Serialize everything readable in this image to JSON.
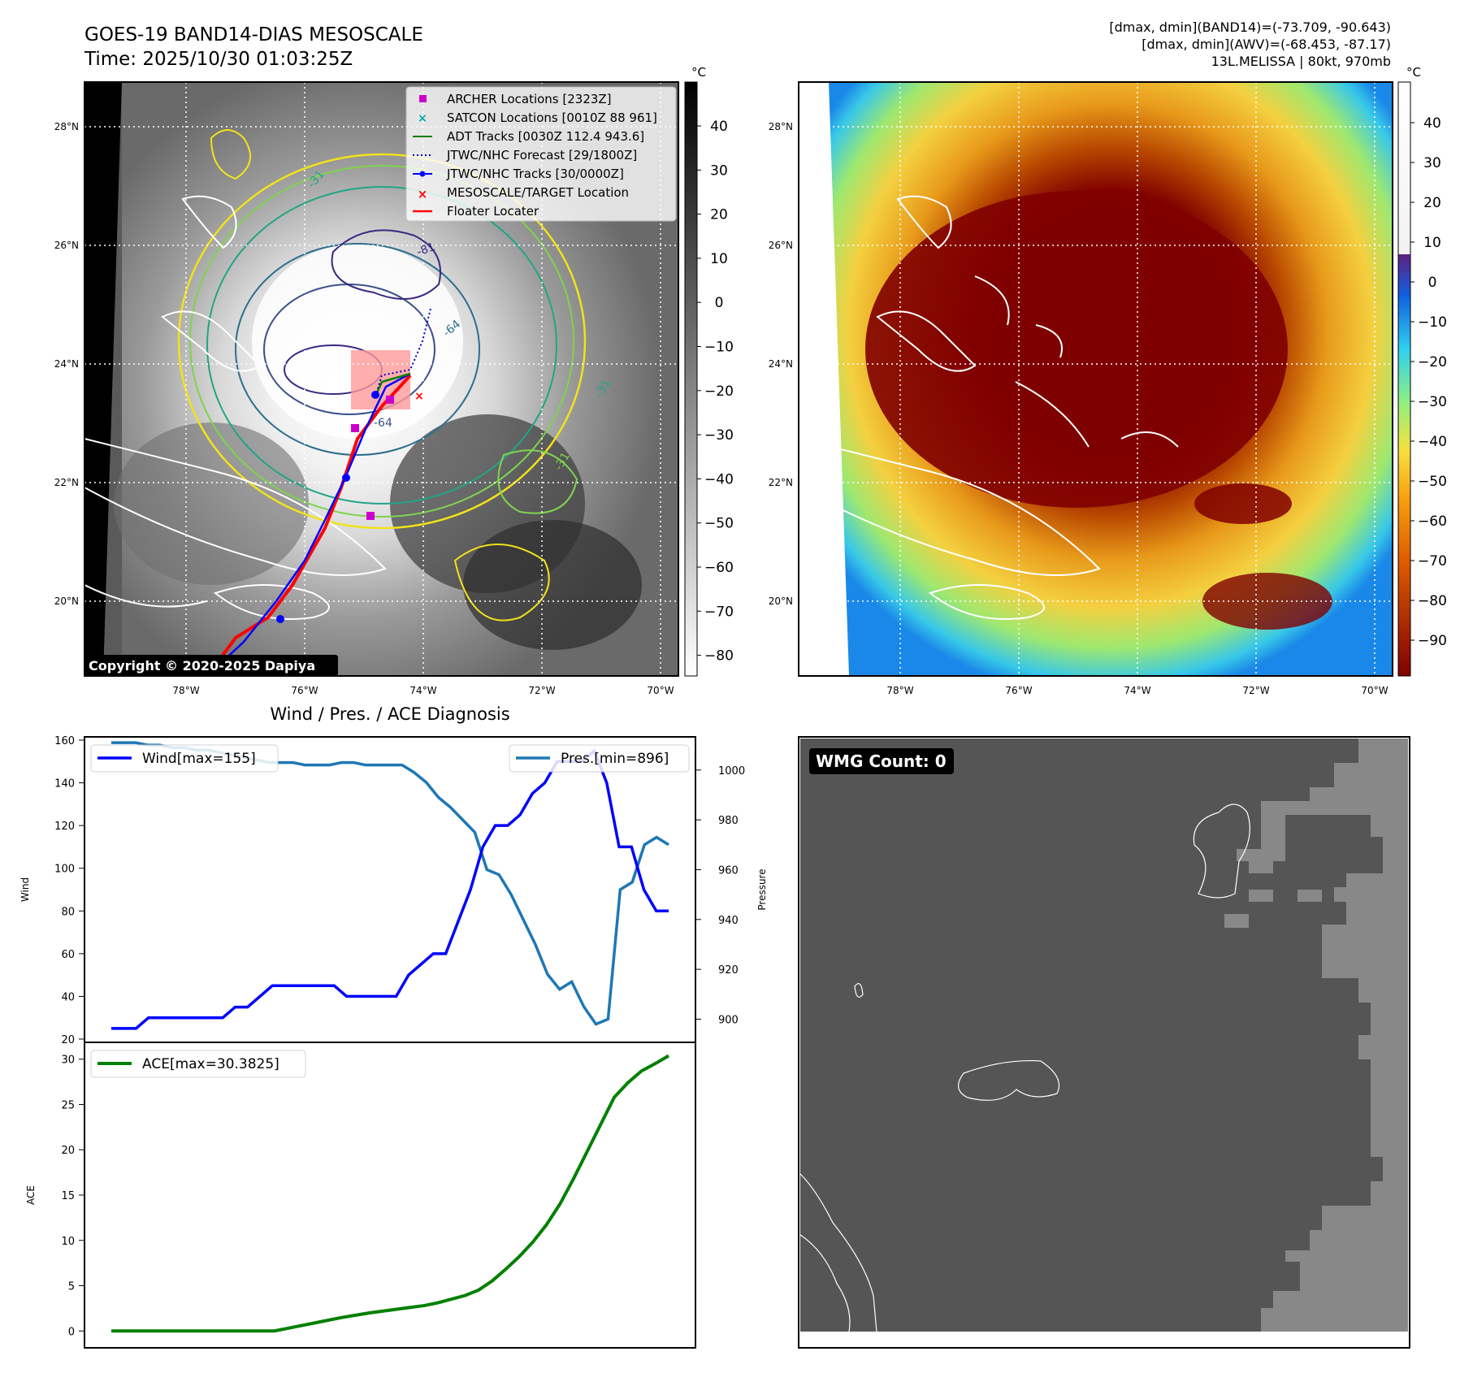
{
  "header": {
    "title_line1": "GOES-19 BAND14-DIAS MESOSCALE",
    "title_line2": "Time: 2025/10/30 01:03:25Z",
    "info_line1": "[dmax, dmin](BAND14)=(-73.709, -90.643)",
    "info_line2": "[dmax, dmin](AWV)=(-68.453, -87.17)",
    "info_line3": "13L.MELISSA | 80kt, 970mb"
  },
  "copyright": "Copyright © 2020-2025 Dapiya",
  "map": {
    "lat_labels": [
      "28°N",
      "26°N",
      "24°N",
      "22°N",
      "20°N"
    ],
    "lon_labels": [
      "78°W",
      "76°W",
      "74°W",
      "72°W",
      "70°W"
    ],
    "legend": [
      {
        "label": "ARCHER Locations [2323Z]",
        "color": "#cc00cc",
        "marker": "square"
      },
      {
        "label": "SATCON Locations [0010Z 88 961]",
        "color": "#00aaaa",
        "marker": "x"
      },
      {
        "label": "ADT Tracks [0030Z 112.4 943.6]",
        "color": "#008000",
        "marker": "line"
      },
      {
        "label": "JTWC/NHC Forecast [29/1800Z]",
        "color": "#0000cc",
        "marker": "dotted"
      },
      {
        "label": "JTWC/NHC Tracks [30/0000Z]",
        "color": "#0000ff",
        "marker": "line-dot"
      },
      {
        "label": "MESOSCALE/TARGET Location",
        "color": "#ff0000",
        "marker": "x"
      },
      {
        "label": "Floater Locater",
        "color": "#ff0000",
        "marker": "line"
      }
    ],
    "contour_labels": [
      "-31",
      "-81",
      "-64",
      "-31",
      "-31",
      "-64"
    ]
  },
  "colorbar_ir": {
    "unit": "°C",
    "ticks": [
      "40",
      "30",
      "20",
      "10",
      "0",
      "−10",
      "−20",
      "−30",
      "−40",
      "−50",
      "−60",
      "−70",
      "−80"
    ]
  },
  "colorbar_awv": {
    "unit": "°C",
    "ticks": [
      "40",
      "30",
      "20",
      "10",
      "0",
      "−10",
      "−20",
      "−30",
      "−40",
      "−50",
      "−60",
      "−70",
      "−80",
      "−90"
    ]
  },
  "diagnosis": {
    "title": "Wind / Pres. / ACE Diagnosis",
    "wind_ylabel": "Wind",
    "pres_ylabel": "Pressure",
    "ace_ylabel": "ACE",
    "wind_legend": "Wind[max=155]",
    "pres_legend": "Pres.[min=896]",
    "ace_legend": "ACE[max=30.3825]",
    "wind_ticks": [
      "160",
      "140",
      "120",
      "100",
      "80",
      "60",
      "40",
      "20"
    ],
    "pres_ticks": [
      "1000",
      "980",
      "960",
      "940",
      "920",
      "900"
    ],
    "ace_ticks": [
      "30",
      "25",
      "20",
      "15",
      "10",
      "5",
      "0"
    ]
  },
  "wmg": {
    "label": "WMG Count: 0"
  },
  "colors": {
    "wind": "#0000ff",
    "pressure": "#1f77b4",
    "ace": "#008000",
    "wmg_bg": "#555555",
    "wmg_cells": "#888888"
  },
  "chart_data": [
    {
      "type": "line",
      "title": "Wind / Pres. / ACE Diagnosis",
      "xlabel": "",
      "ylabel": "Wind",
      "ylim": [
        20,
        160
      ],
      "series": [
        {
          "name": "Wind[max=155]",
          "values": [
            25,
            25,
            25,
            30,
            30,
            30,
            30,
            30,
            30,
            30,
            35,
            35,
            40,
            45,
            45,
            45,
            45,
            45,
            45,
            40,
            40,
            40,
            40,
            40,
            50,
            55,
            60,
            60,
            75,
            90,
            110,
            120,
            120,
            125,
            135,
            140,
            150,
            150,
            150,
            155,
            140,
            110,
            110,
            90,
            80,
            80
          ]
        }
      ]
    },
    {
      "type": "line",
      "title": "",
      "xlabel": "",
      "ylabel": "Pressure",
      "ylim": [
        892,
        1012
      ],
      "series": [
        {
          "name": "Pres.[min=896]",
          "values": [
            1011,
            1011,
            1011,
            1010,
            1010,
            1009,
            1009,
            1008,
            1008,
            1007,
            1006,
            1005,
            1004,
            1003,
            1003,
            1003,
            1002,
            1002,
            1002,
            1003,
            1003,
            1002,
            1002,
            1002,
            1002,
            999,
            995,
            989,
            985,
            980,
            975,
            960,
            958,
            950,
            940,
            930,
            918,
            912,
            915,
            905,
            898,
            900,
            952,
            955,
            970,
            973,
            970
          ]
        }
      ]
    },
    {
      "type": "line",
      "title": "",
      "xlabel": "",
      "ylabel": "ACE",
      "ylim": [
        -1.5,
        31.5
      ],
      "series": [
        {
          "name": "ACE[max=30.3825]",
          "values": [
            0,
            0,
            0,
            0,
            0,
            0,
            0,
            0,
            0,
            0,
            0,
            0,
            0,
            0.3,
            0.6,
            0.9,
            1.2,
            1.5,
            1.75,
            2.0,
            2.2,
            2.4,
            2.6,
            2.8,
            3.1,
            3.5,
            3.9,
            4.5,
            5.5,
            6.8,
            8.2,
            9.8,
            11.7,
            14,
            16.8,
            19.8,
            22.8,
            25.8,
            27.4,
            28.7,
            29.5,
            30.38
          ]
        }
      ]
    }
  ]
}
